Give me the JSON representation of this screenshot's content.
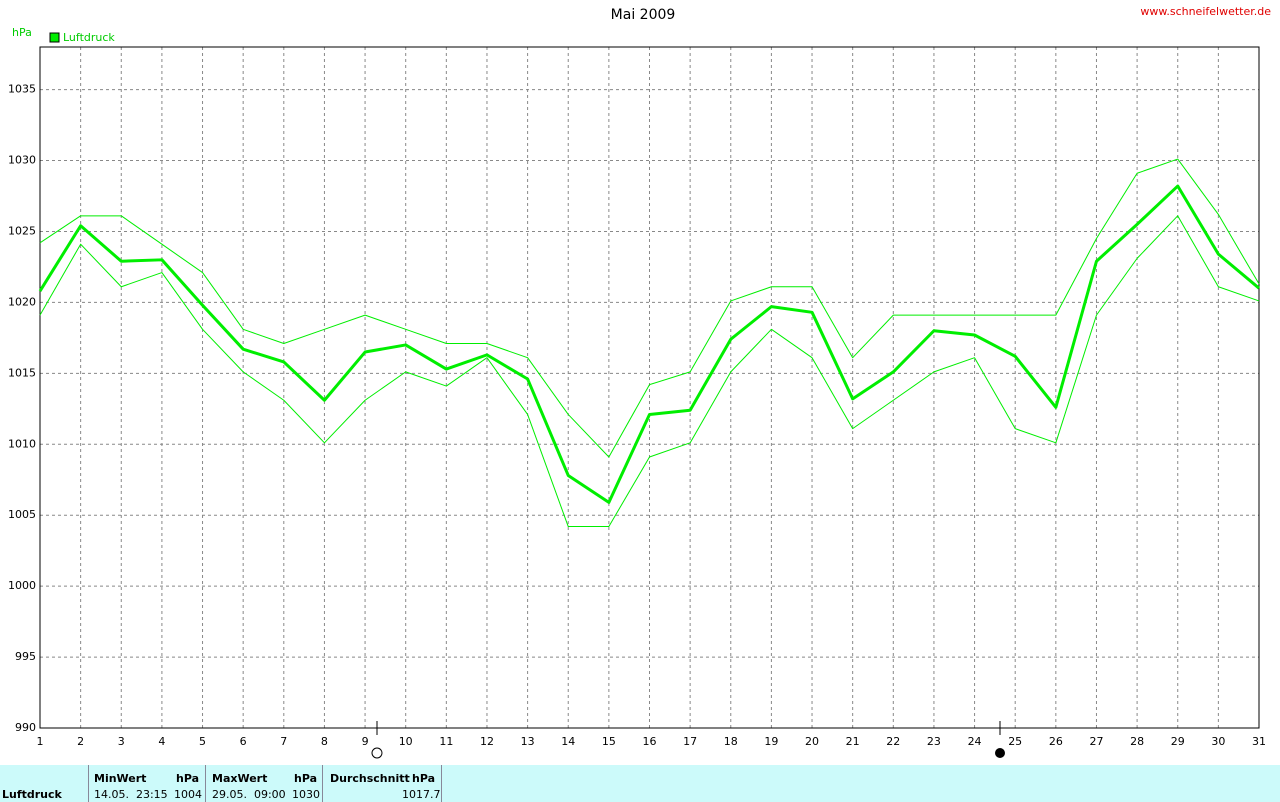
{
  "chart_data": {
    "type": "line",
    "title": "Mai 2009",
    "y_unit": "hPa",
    "x": [
      1,
      2,
      3,
      4,
      5,
      6,
      7,
      8,
      9,
      10,
      11,
      12,
      13,
      14,
      15,
      16,
      17,
      18,
      19,
      20,
      21,
      22,
      23,
      24,
      25,
      26,
      27,
      28,
      29,
      30,
      31
    ],
    "xlim": [
      1,
      31
    ],
    "xticks": [
      1,
      2,
      3,
      4,
      5,
      6,
      7,
      8,
      9,
      10,
      11,
      12,
      13,
      14,
      15,
      16,
      17,
      18,
      19,
      20,
      21,
      22,
      23,
      24,
      25,
      26,
      27,
      28,
      29,
      30,
      31
    ],
    "ylim": [
      990,
      1038
    ],
    "yticks": [
      990,
      995,
      1000,
      1005,
      1010,
      1015,
      1020,
      1025,
      1030,
      1035
    ],
    "grid": true,
    "series": [
      {
        "name": "Luftdruck",
        "color": "#00ee00",
        "line_width": 3,
        "values": [
          1020.8,
          1025.4,
          1022.9,
          1023.0,
          1019.8,
          1016.7,
          1015.8,
          1013.1,
          1016.5,
          1017.0,
          1015.3,
          1016.3,
          1014.6,
          1007.8,
          1005.9,
          1012.1,
          1012.4,
          1017.4,
          1019.7,
          1019.3,
          1013.2,
          1015.1,
          1018.0,
          1017.7,
          1016.2,
          1012.6,
          1022.9,
          1025.5,
          1028.2,
          1023.4,
          1021.0
        ]
      },
      {
        "color": "#00ee00",
        "line_width": 1,
        "values": [
          1024.2,
          1026.1,
          1026.1,
          1024.1,
          1022.1,
          1018.1,
          1017.1,
          1018.1,
          1019.1,
          1018.1,
          1017.1,
          1017.1,
          1016.1,
          1012.1,
          1009.1,
          1014.2,
          1015.1,
          1020.1,
          1021.1,
          1021.1,
          1016.1,
          1019.1,
          1019.1,
          1019.1,
          1019.1,
          1019.1,
          1024.5,
          1029.1,
          1030.1,
          1026.2,
          1021.3
        ]
      },
      {
        "color": "#00ee00",
        "line_width": 1,
        "values": [
          1019.1,
          1024.1,
          1021.1,
          1022.1,
          1018.1,
          1015.1,
          1013.1,
          1010.1,
          1013.1,
          1015.1,
          1014.1,
          1016.1,
          1012.1,
          1004.2,
          1004.2,
          1009.1,
          1010.1,
          1015.1,
          1018.1,
          1016.1,
          1011.1,
          1013.1,
          1015.1,
          1016.1,
          1011.1,
          1010.1,
          1019.1,
          1023.1,
          1026.1,
          1021.1,
          1020.1
        ]
      }
    ]
  },
  "site_url": "www.schneifelwetter.de",
  "stats_table": {
    "header": [
      "MinWert",
      "hPa",
      "MaxWert",
      "hPa",
      "Durchschnitt",
      "hPa"
    ],
    "row_label": "Luftdruck",
    "row": [
      "14.05.  23:15",
      "1004",
      "29.05.  09:00",
      "1030",
      "1017.7"
    ]
  }
}
